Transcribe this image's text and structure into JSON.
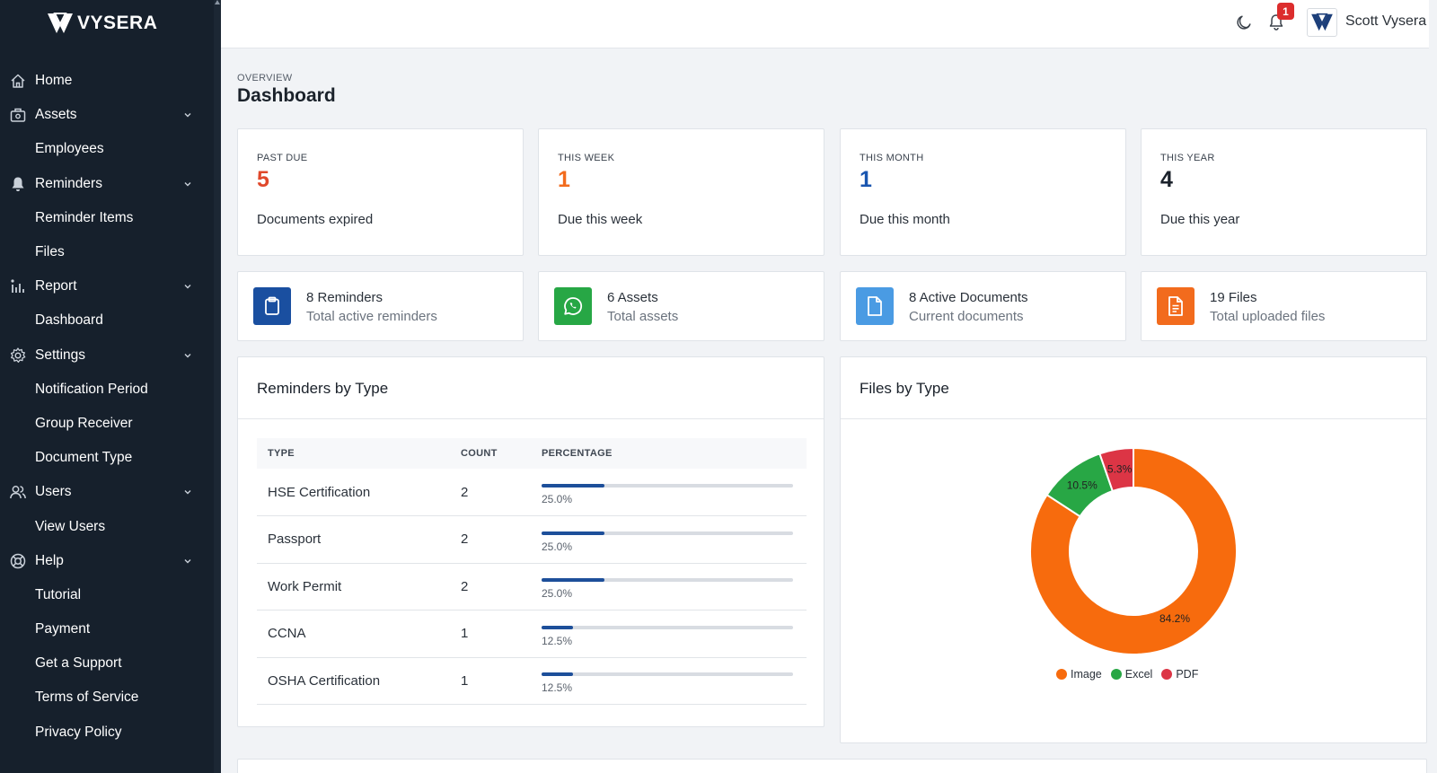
{
  "brand": {
    "name": "VYSERA"
  },
  "sidebar": {
    "items": [
      {
        "label": "Home",
        "icon": "home-icon",
        "expandable": false
      },
      {
        "label": "Assets",
        "icon": "assets-icon",
        "expandable": true
      },
      {
        "label": "Employees",
        "icon": "",
        "expandable": false
      },
      {
        "label": "Reminders",
        "icon": "bell-icon",
        "expandable": true
      },
      {
        "label": "Reminder Items",
        "icon": "",
        "expandable": false
      },
      {
        "label": "Files",
        "icon": "",
        "expandable": false
      },
      {
        "label": "Report",
        "icon": "report-icon",
        "expandable": true
      },
      {
        "label": "Dashboard",
        "icon": "",
        "expandable": false
      },
      {
        "label": "Settings",
        "icon": "gear-icon",
        "expandable": true
      },
      {
        "label": "Notification Period",
        "icon": "",
        "expandable": false
      },
      {
        "label": "Group Receiver",
        "icon": "",
        "expandable": false
      },
      {
        "label": "Document Type",
        "icon": "",
        "expandable": false
      },
      {
        "label": "Users",
        "icon": "users-icon",
        "expandable": true
      },
      {
        "label": "View Users",
        "icon": "",
        "expandable": false
      },
      {
        "label": "Help",
        "icon": "help-icon",
        "expandable": true
      },
      {
        "label": "Tutorial",
        "icon": "",
        "expandable": false
      },
      {
        "label": "Payment",
        "icon": "",
        "expandable": false
      },
      {
        "label": "Get a Support",
        "icon": "",
        "expandable": false
      },
      {
        "label": "Terms of Service",
        "icon": "",
        "expandable": false
      },
      {
        "label": "Privacy Policy",
        "icon": "",
        "expandable": false
      }
    ]
  },
  "topbar": {
    "notification_count": "1",
    "user_name": "Scott Vysera"
  },
  "page": {
    "crumb": "OVERVIEW",
    "title": "Dashboard"
  },
  "stats": [
    {
      "label": "PAST DUE",
      "value": "5",
      "desc": "Documents expired",
      "color": "#e0482b"
    },
    {
      "label": "THIS WEEK",
      "value": "1",
      "desc": "Due this week",
      "color": "#f26b1d"
    },
    {
      "label": "THIS MONTH",
      "value": "1",
      "desc": "Due this month",
      "color": "#1a56b0"
    },
    {
      "label": "THIS YEAR",
      "value": "4",
      "desc": "Due this year",
      "color": "#1b222b"
    }
  ],
  "summaries": [
    {
      "title": "8 Reminders",
      "subtitle": "Total active reminders",
      "icon": "clipboard-icon",
      "color": "#1a4fa0"
    },
    {
      "title": "6 Assets",
      "subtitle": "Total assets",
      "icon": "whatsapp-icon",
      "color": "#27a745"
    },
    {
      "title": "8 Active Documents",
      "subtitle": "Current documents",
      "icon": "document-icon",
      "color": "#4a9be3"
    },
    {
      "title": "19 Files",
      "subtitle": "Total uploaded files",
      "icon": "file-text-icon",
      "color": "#f26b1d"
    }
  ],
  "reminders_panel": {
    "title": "Reminders by Type",
    "columns": [
      "TYPE",
      "COUNT",
      "PERCENTAGE"
    ],
    "rows": [
      {
        "type": "HSE Certification",
        "count": "2",
        "pct": 25.0,
        "pct_label": "25.0%"
      },
      {
        "type": "Passport",
        "count": "2",
        "pct": 25.0,
        "pct_label": "25.0%"
      },
      {
        "type": "Work Permit",
        "count": "2",
        "pct": 25.0,
        "pct_label": "25.0%"
      },
      {
        "type": "CCNA",
        "count": "1",
        "pct": 12.5,
        "pct_label": "12.5%"
      },
      {
        "type": "OSHA Certification",
        "count": "1",
        "pct": 12.5,
        "pct_label": "12.5%"
      }
    ]
  },
  "files_panel": {
    "title": "Files by Type"
  },
  "chart_data": {
    "type": "pie",
    "donut": true,
    "categories": [
      "Image",
      "Excel",
      "PDF"
    ],
    "values": [
      84.2,
      10.5,
      5.3
    ],
    "labels": [
      "84.2%",
      "10.5%",
      "5.3%"
    ],
    "colors": [
      "#f76b0d",
      "#28a745",
      "#dc3545"
    ],
    "legend": "bottom"
  }
}
